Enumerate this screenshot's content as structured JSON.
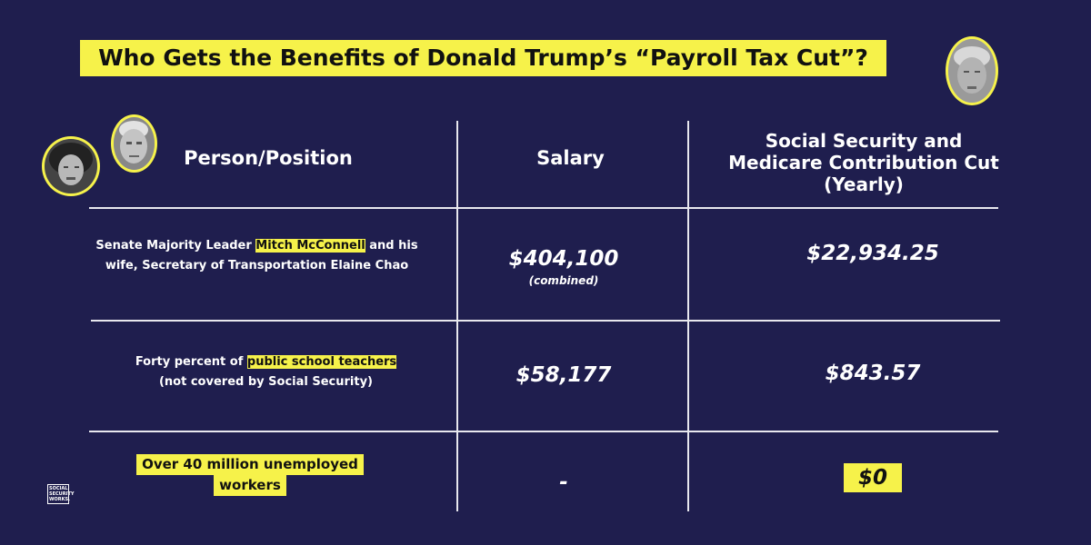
{
  "title": "Who Gets the Benefits of Donald Trump’s “Payroll Tax Cut”?",
  "headers": {
    "person": "Person/Position",
    "salary": "Salary",
    "cut_line1": "Social Security and",
    "cut_line2": "Medicare Contribution Cut",
    "cut_line3": "(Yearly)"
  },
  "rows": [
    {
      "person_prefix": "Senate Majority Leader ",
      "person_highlight": "Mitch McConnell",
      "person_suffix": " and his",
      "person_line2": "wife, Secretary of Transportation Elaine Chao",
      "salary": "$404,100",
      "salary_note": "(combined)",
      "cut": "$22,934.25"
    },
    {
      "person_prefix": "Forty percent of ",
      "person_highlight": "public school teachers",
      "person_line2": "(not covered by Social Security)",
      "salary": "$58,177",
      "cut": "$843.57"
    },
    {
      "person_line1": "Over 40 million unemployed",
      "person_line2": "workers",
      "salary": "-",
      "cut": "$0"
    }
  ],
  "logo": {
    "line1": "SOCIAL",
    "line2": "SECURITY",
    "line3": "WORKS."
  },
  "colors": {
    "background": "#1f1e4e",
    "highlight": "#f6f24a",
    "text": "#ffffff"
  }
}
